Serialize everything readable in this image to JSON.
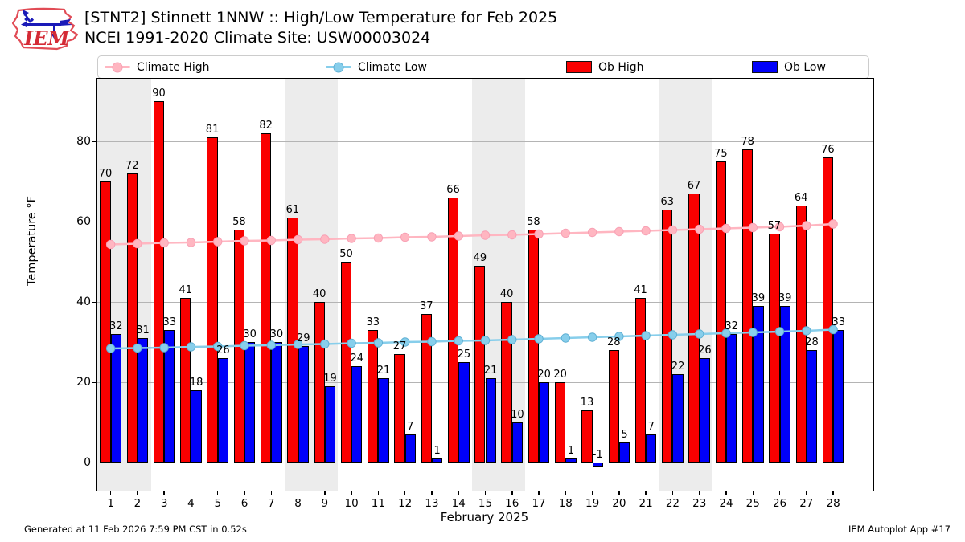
{
  "header": {
    "title_line1": "[STNT2] Stinnett 1NNW :: High/Low Temperature for Feb 2025",
    "title_line2": "NCEI 1991-2020 Climate Site: USW00003024",
    "logo_text": "IEM"
  },
  "legend": {
    "items": [
      {
        "label": "Climate High",
        "type": "line",
        "color": "#ffb6c1",
        "marker_edge": "#f8a0b4"
      },
      {
        "label": "Climate Low",
        "type": "line",
        "color": "#87ceeb",
        "marker_edge": "#5fb0d4"
      },
      {
        "label": "Ob High",
        "type": "rect",
        "color": "#fa0000"
      },
      {
        "label": "Ob Low",
        "type": "rect",
        "color": "#0000fa"
      }
    ]
  },
  "chart_data": {
    "type": "bar",
    "title": "[STNT2] Stinnett 1NNW :: High/Low Temperature for Feb 2025",
    "subtitle": "NCEI 1991-2020 Climate Site: USW00003024",
    "xlabel": "February 2025",
    "ylabel": "Temperature °F",
    "x": [
      1,
      2,
      3,
      4,
      5,
      6,
      7,
      8,
      9,
      10,
      11,
      12,
      13,
      14,
      15,
      16,
      17,
      18,
      19,
      20,
      21,
      22,
      23,
      24,
      25,
      26,
      27,
      28
    ],
    "xlim": [
      0.5,
      29.5
    ],
    "ylim": [
      -7,
      95.6
    ],
    "yticks": [
      0,
      20,
      40,
      60,
      80
    ],
    "grid": true,
    "weekend_bands": [
      [
        0.5,
        2.5
      ],
      [
        7.5,
        9.5
      ],
      [
        14.5,
        16.5
      ],
      [
        21.5,
        23.5
      ]
    ],
    "band_color": "#ececec",
    "grid_color": "#b4b4b4",
    "series": [
      {
        "name": "Ob High",
        "type": "bar",
        "color": "#fa0000",
        "values": [
          70,
          72,
          90,
          41,
          81,
          58,
          82,
          61,
          40,
          50,
          33,
          27,
          37,
          66,
          49,
          40,
          58,
          20,
          13,
          28,
          41,
          63,
          67,
          75,
          78,
          57,
          64,
          76
        ]
      },
      {
        "name": "Ob Low",
        "type": "bar",
        "color": "#0000fa",
        "values": [
          32,
          31,
          33,
          18,
          26,
          30,
          30,
          29,
          19,
          24,
          21,
          7,
          1,
          25,
          21,
          10,
          20,
          1,
          -1,
          5,
          7,
          22,
          26,
          32,
          39,
          39,
          28,
          33
        ]
      },
      {
        "name": "Climate High",
        "type": "line",
        "color": "#ffb6c1",
        "marker_edge": "#f8a0b4",
        "values": [
          54.3,
          54.5,
          54.7,
          54.8,
          55.0,
          55.2,
          55.3,
          55.5,
          55.6,
          55.8,
          55.9,
          56.1,
          56.2,
          56.4,
          56.6,
          56.7,
          56.9,
          57.1,
          57.3,
          57.5,
          57.7,
          57.9,
          58.1,
          58.3,
          58.5,
          58.7,
          59.0,
          59.4
        ]
      },
      {
        "name": "Climate Low",
        "type": "line",
        "color": "#87ceeb",
        "marker_edge": "#5fb0d4",
        "values": [
          28.4,
          28.5,
          28.6,
          28.8,
          28.9,
          29.1,
          29.2,
          29.4,
          29.5,
          29.7,
          29.8,
          30.0,
          30.1,
          30.3,
          30.4,
          30.6,
          30.8,
          31.0,
          31.2,
          31.4,
          31.6,
          31.8,
          32.0,
          32.2,
          32.4,
          32.6,
          32.8,
          33.1
        ]
      }
    ]
  },
  "footer": {
    "left": "Generated at 11 Feb 2026 7:59 PM CST in 0.52s",
    "right": "IEM Autoplot App #17"
  }
}
